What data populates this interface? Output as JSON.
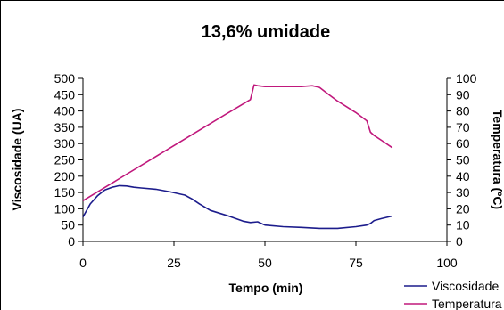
{
  "chart_data": {
    "type": "line",
    "title": "13,6%  umidade",
    "xlabel": "Tempo (min)",
    "ylabel": "Viscosidade (UA)",
    "y2label": "Temperatura (ºC)",
    "xlim": [
      0,
      100
    ],
    "ylim": [
      0,
      500
    ],
    "y2lim": [
      0,
      100
    ],
    "x_ticks": [
      0,
      25,
      50,
      75,
      100
    ],
    "y_ticks": [
      0,
      50,
      100,
      150,
      200,
      250,
      300,
      350,
      400,
      450,
      500
    ],
    "y2_ticks": [
      0,
      10,
      20,
      30,
      40,
      50,
      60,
      70,
      80,
      90,
      100
    ],
    "grid": false,
    "legend_position": "bottom-right",
    "series": [
      {
        "name": "Viscosidade",
        "axis": "left",
        "color": "#1c1c8c",
        "x": [
          0,
          2,
          4,
          6,
          8,
          10,
          12,
          14,
          16,
          20,
          24,
          28,
          30,
          32,
          35,
          40,
          44,
          46,
          48,
          50,
          55,
          60,
          65,
          70,
          75,
          78,
          79,
          80,
          82,
          85
        ],
        "y": [
          75,
          115,
          140,
          158,
          166,
          171,
          170,
          166,
          164,
          160,
          152,
          142,
          130,
          115,
          95,
          78,
          62,
          58,
          60,
          50,
          45,
          43,
          40,
          40,
          45,
          50,
          55,
          64,
          70,
          78
        ]
      },
      {
        "name": "Temperatura",
        "axis": "right",
        "color": "#c0187c",
        "x": [
          0,
          10,
          20,
          30,
          40,
          46,
          47,
          48,
          50,
          55,
          60,
          63,
          65,
          67,
          70,
          75,
          78,
          79,
          80,
          82,
          85
        ],
        "y": [
          25,
          38.5,
          52,
          65.5,
          79,
          87,
          96,
          95.5,
          95,
          95,
          95,
          95.5,
          94.5,
          91,
          86,
          79,
          74,
          67,
          65,
          62,
          57.5
        ]
      }
    ]
  }
}
